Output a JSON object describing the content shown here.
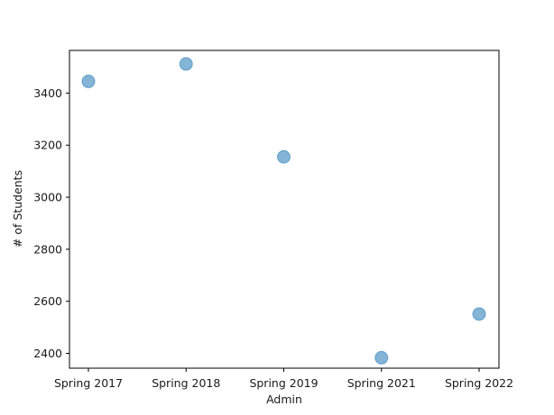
{
  "chart_data": {
    "type": "scatter",
    "title": "",
    "xlabel": "Admin",
    "ylabel": "# of Students",
    "categories": [
      "Spring 2017",
      "Spring 2018",
      "Spring 2019",
      "Spring 2021",
      "Spring 2022"
    ],
    "values": [
      3445,
      3512,
      3155,
      2383,
      2551
    ],
    "yticks": [
      2400,
      2600,
      2800,
      3000,
      3200,
      3400
    ],
    "ylim": [
      2343,
      3564
    ],
    "grid": false,
    "marker_color": "#1f77b4",
    "marker_alpha": 0.55
  }
}
